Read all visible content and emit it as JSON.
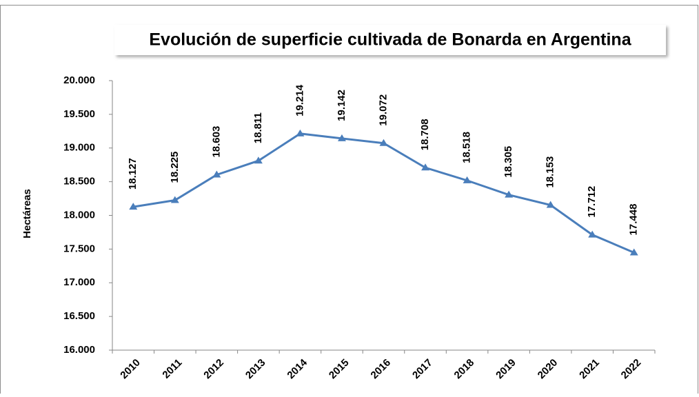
{
  "chart_data": {
    "type": "line",
    "title": "Evolución de superficie cultivada de Bonarda en Argentina",
    "y_label": "Hectáreas",
    "categories": [
      "2010",
      "2011",
      "2012",
      "2013",
      "2014",
      "2015",
      "2016",
      "2017",
      "2018",
      "2019",
      "2020",
      "2021",
      "2022"
    ],
    "series": [
      {
        "name": "Hectáreas",
        "color": "#4a7ebb",
        "values": [
          18127,
          18225,
          18603,
          18811,
          19214,
          19142,
          19072,
          18708,
          18518,
          18305,
          18153,
          17712,
          17448
        ],
        "value_labels": [
          "18.127",
          "18.225",
          "18.603",
          "18.811",
          "19.214",
          "19.142",
          "19.072",
          "18.708",
          "18.518",
          "18.305",
          "18.153",
          "17.712",
          "17.448"
        ]
      }
    ],
    "ylim": [
      16000,
      20000
    ],
    "yticks": [
      {
        "value": 16000,
        "label": "16.000"
      },
      {
        "value": 16500,
        "label": "16.500"
      },
      {
        "value": 17000,
        "label": "17.000"
      },
      {
        "value": 17500,
        "label": "17.500"
      },
      {
        "value": 18000,
        "label": "18.000"
      },
      {
        "value": 18500,
        "label": "18.500"
      },
      {
        "value": 19000,
        "label": "19.000"
      },
      {
        "value": 19500,
        "label": "19.500"
      },
      {
        "value": 20000,
        "label": "20.000"
      }
    ],
    "grid": false
  }
}
